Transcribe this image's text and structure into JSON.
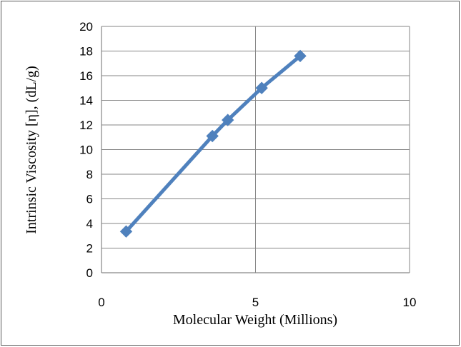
{
  "chart_data": {
    "type": "scatter",
    "title": "",
    "xlabel": "Molecular Weight (Millions)",
    "ylabel": "Intrinsic Viscosity [η], (dL/g)",
    "xlim": [
      0,
      10
    ],
    "ylim": [
      0,
      20
    ],
    "x_ticks": [
      0,
      5,
      10
    ],
    "y_ticks": [
      0,
      2,
      4,
      6,
      8,
      10,
      12,
      14,
      16,
      18,
      20
    ],
    "grid": true,
    "legend": "none",
    "series": [
      {
        "marker": "diamond",
        "line": "straight",
        "color": "#4F81BD",
        "x": [
          0.8,
          3.6,
          4.1,
          5.2,
          6.45
        ],
        "y": [
          3.35,
          11.1,
          12.4,
          15.0,
          17.6
        ]
      }
    ]
  }
}
